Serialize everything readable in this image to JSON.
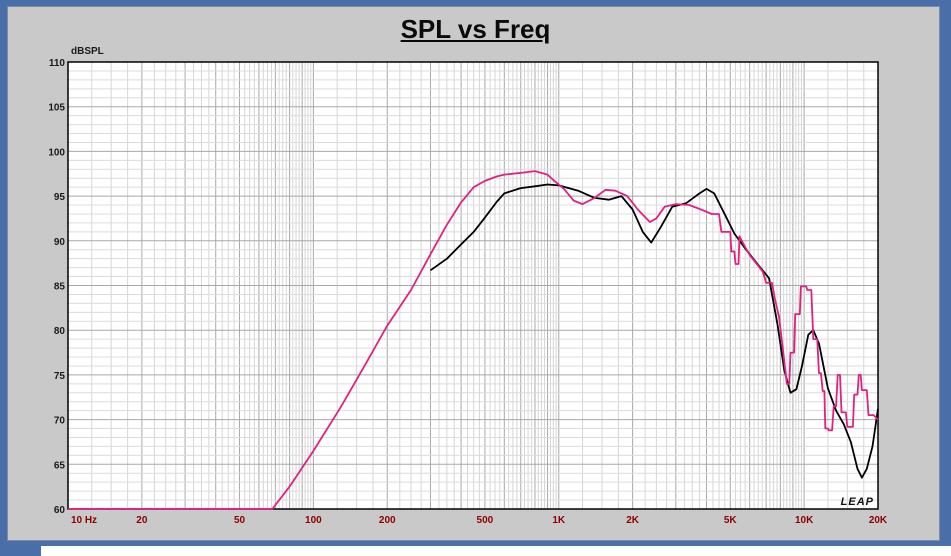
{
  "window": {
    "frame_color": "#4a6fa8",
    "panel_color": "#c9c9c9"
  },
  "chart_data": {
    "type": "line",
    "title": "SPL vs Freq",
    "ylabel": "dBSPL",
    "xlabel": "",
    "x_scale": "log",
    "xlim": [
      10,
      20000
    ],
    "ylim": [
      60,
      110
    ],
    "grid": true,
    "x_ticks": [
      {
        "value": 10,
        "label": "10 Hz"
      },
      {
        "value": 20,
        "label": "20"
      },
      {
        "value": 50,
        "label": "50"
      },
      {
        "value": 100,
        "label": "100"
      },
      {
        "value": 200,
        "label": "200"
      },
      {
        "value": 500,
        "label": "500"
      },
      {
        "value": 1000,
        "label": "1K"
      },
      {
        "value": 2000,
        "label": "2K"
      },
      {
        "value": 5000,
        "label": "5K"
      },
      {
        "value": 10000,
        "label": "10K"
      },
      {
        "value": 20000,
        "label": "20K"
      }
    ],
    "y_ticks": [
      60,
      65,
      70,
      75,
      80,
      85,
      90,
      95,
      100,
      105,
      110
    ],
    "watermark": "LEAP",
    "colors": {
      "plot_background": "#ffffff",
      "grid": "#bfbfbf",
      "axis_text": "#8b0000",
      "series_black": "#000000",
      "series_magenta": "#e0227f"
    },
    "series": [
      {
        "color": "#000000",
        "points": [
          [
            300,
            86.7
          ],
          [
            350,
            88.0
          ],
          [
            400,
            89.6
          ],
          [
            450,
            91.0
          ],
          [
            500,
            92.6
          ],
          [
            560,
            94.4
          ],
          [
            600,
            95.3
          ],
          [
            700,
            95.9
          ],
          [
            800,
            96.1
          ],
          [
            900,
            96.3
          ],
          [
            1000,
            96.2
          ],
          [
            1200,
            95.6
          ],
          [
            1400,
            94.8
          ],
          [
            1600,
            94.6
          ],
          [
            1800,
            95.0
          ],
          [
            2000,
            93.5
          ],
          [
            2200,
            91.0
          ],
          [
            2380,
            89.8
          ],
          [
            2600,
            91.5
          ],
          [
            2900,
            93.8
          ],
          [
            3300,
            94.2
          ],
          [
            3700,
            95.2
          ],
          [
            4000,
            95.8
          ],
          [
            4300,
            95.3
          ],
          [
            4700,
            93.2
          ],
          [
            5200,
            90.8
          ],
          [
            5800,
            89.0
          ],
          [
            6500,
            87.3
          ],
          [
            7200,
            85.8
          ],
          [
            7800,
            80.5
          ],
          [
            8300,
            75.5
          ],
          [
            8800,
            73.0
          ],
          [
            9300,
            73.4
          ],
          [
            9800,
            76.0
          ],
          [
            10400,
            79.5
          ],
          [
            10900,
            80.0
          ],
          [
            11500,
            78.5
          ],
          [
            12500,
            73.5
          ],
          [
            13500,
            71.0
          ],
          [
            14500,
            69.5
          ],
          [
            15500,
            67.5
          ],
          [
            16500,
            64.5
          ],
          [
            17200,
            63.5
          ],
          [
            18000,
            64.5
          ],
          [
            19000,
            67.0
          ],
          [
            20000,
            71.2
          ]
        ]
      },
      {
        "color": "#e0227f",
        "points": [
          [
            10,
            60.0
          ],
          [
            30,
            60.0
          ],
          [
            68,
            60.0
          ],
          [
            80,
            62.5
          ],
          [
            100,
            66.5
          ],
          [
            130,
            71.5
          ],
          [
            160,
            75.8
          ],
          [
            200,
            80.5
          ],
          [
            250,
            84.5
          ],
          [
            300,
            88.5
          ],
          [
            350,
            91.8
          ],
          [
            400,
            94.3
          ],
          [
            450,
            96.0
          ],
          [
            500,
            96.7
          ],
          [
            560,
            97.2
          ],
          [
            600,
            97.4
          ],
          [
            700,
            97.6
          ],
          [
            800,
            97.8
          ],
          [
            900,
            97.4
          ],
          [
            950,
            96.8
          ],
          [
            1050,
            95.8
          ],
          [
            1150,
            94.5
          ],
          [
            1250,
            94.1
          ],
          [
            1400,
            94.8
          ],
          [
            1550,
            95.7
          ],
          [
            1700,
            95.6
          ],
          [
            1900,
            95.0
          ],
          [
            2100,
            93.5
          ],
          [
            2350,
            92.1
          ],
          [
            2500,
            92.5
          ],
          [
            2700,
            93.8
          ],
          [
            3000,
            94.1
          ],
          [
            3400,
            94.0
          ],
          [
            3800,
            93.5
          ],
          [
            4200,
            93.0
          ],
          [
            4500,
            93.0
          ],
          [
            4600,
            91.0
          ],
          [
            5000,
            91.0
          ],
          [
            5050,
            88.8
          ],
          [
            5200,
            88.8
          ],
          [
            5250,
            87.4
          ],
          [
            5400,
            87.4
          ],
          [
            5450,
            90.5
          ],
          [
            5700,
            89.5
          ],
          [
            6000,
            88.4
          ],
          [
            6500,
            87.2
          ],
          [
            6800,
            86.5
          ],
          [
            7000,
            85.3
          ],
          [
            7400,
            85.3
          ],
          [
            7600,
            83.5
          ],
          [
            7900,
            81.5
          ],
          [
            8200,
            77.8
          ],
          [
            8500,
            74.0
          ],
          [
            8700,
            74.0
          ],
          [
            8800,
            77.5
          ],
          [
            9100,
            77.5
          ],
          [
            9200,
            81.8
          ],
          [
            9600,
            81.8
          ],
          [
            9700,
            84.9
          ],
          [
            10200,
            84.9
          ],
          [
            10300,
            84.5
          ],
          [
            10700,
            84.5
          ],
          [
            10900,
            79.0
          ],
          [
            11300,
            79.0
          ],
          [
            11500,
            75.2
          ],
          [
            11700,
            75.2
          ],
          [
            11900,
            73.2
          ],
          [
            12100,
            73.2
          ],
          [
            12200,
            69.0
          ],
          [
            12500,
            69.0
          ],
          [
            12600,
            68.8
          ],
          [
            13000,
            68.8
          ],
          [
            13200,
            71.5
          ],
          [
            13500,
            71.5
          ],
          [
            13700,
            75.0
          ],
          [
            14000,
            75.0
          ],
          [
            14200,
            70.8
          ],
          [
            14800,
            70.8
          ],
          [
            15000,
            69.2
          ],
          [
            15800,
            69.2
          ],
          [
            16000,
            72.8
          ],
          [
            16500,
            72.8
          ],
          [
            16700,
            75.0
          ],
          [
            17000,
            75.0
          ],
          [
            17200,
            73.3
          ],
          [
            18000,
            73.3
          ],
          [
            18300,
            70.5
          ],
          [
            19200,
            70.5
          ],
          [
            20000,
            70.0
          ]
        ]
      }
    ]
  }
}
